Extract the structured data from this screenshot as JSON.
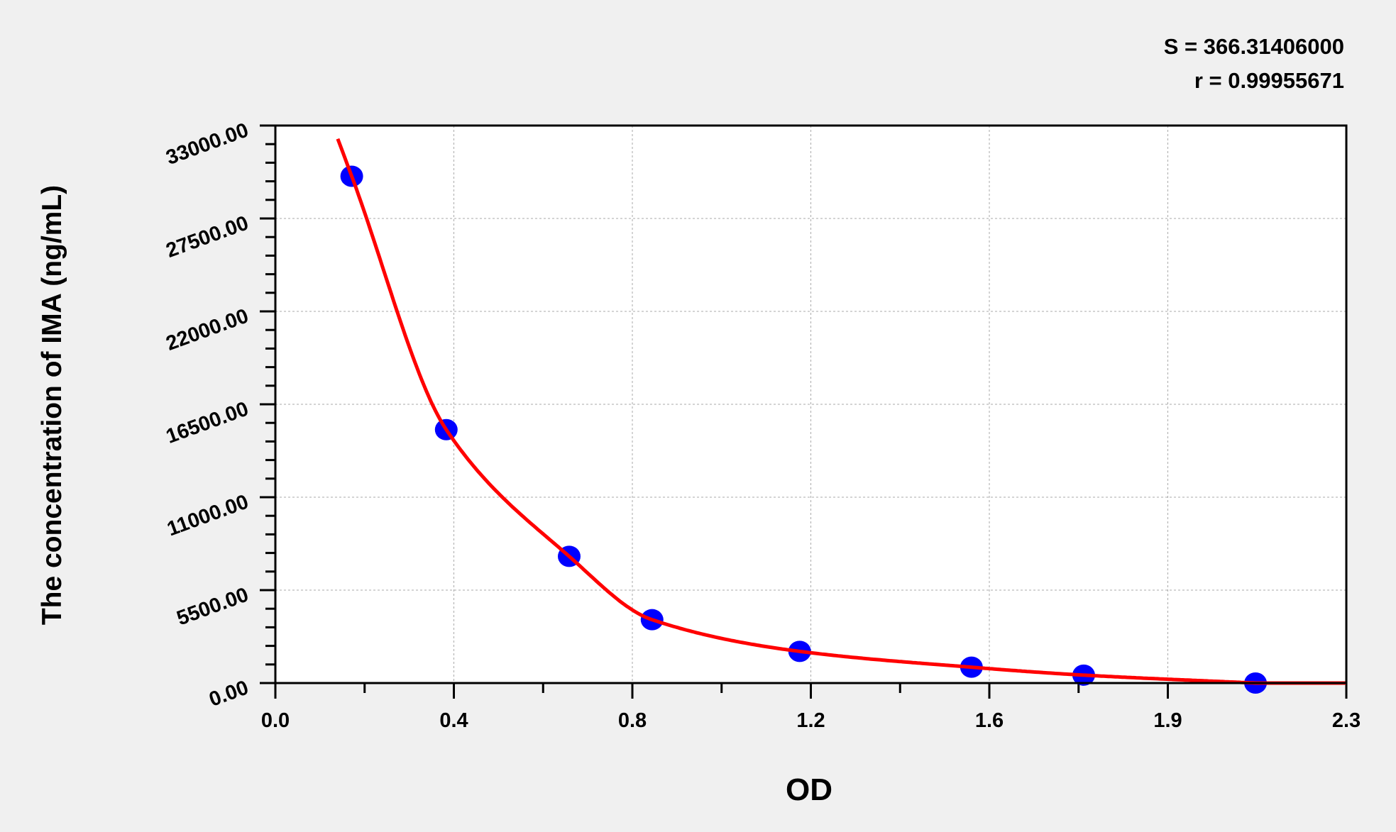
{
  "chart_data": {
    "type": "scatter",
    "title": "",
    "xlabel": "OD",
    "ylabel": "The concentration of IMA (ng/mL)",
    "annotations": [
      "S = 366.31406000",
      "r = 0.99955671"
    ],
    "xlim": [
      0,
      2.3
    ],
    "ylim": [
      0,
      33000
    ],
    "x_tick_labels": [
      "0.0",
      "0.4",
      "0.8",
      "1.2",
      "1.6",
      "1.9",
      "2.3"
    ],
    "y_ticks": [
      0,
      5500,
      11000,
      16500,
      22000,
      27500,
      33000
    ],
    "y_tick_labels": [
      "0.00",
      "5500.00",
      "11000.00",
      "16500.00",
      "22000.00",
      "27500.00",
      "33000.00"
    ],
    "grid": true,
    "series": [
      {
        "kind": "points",
        "color": "#0000ff",
        "x": [
          0.164,
          0.367,
          0.631,
          0.809,
          1.126,
          1.495,
          1.736,
          2.105
        ],
        "y": [
          30000,
          15000,
          7500,
          3750,
          1875,
          938,
          469,
          0
        ]
      },
      {
        "kind": "fitted-curve",
        "color": "#ff0000"
      }
    ]
  }
}
